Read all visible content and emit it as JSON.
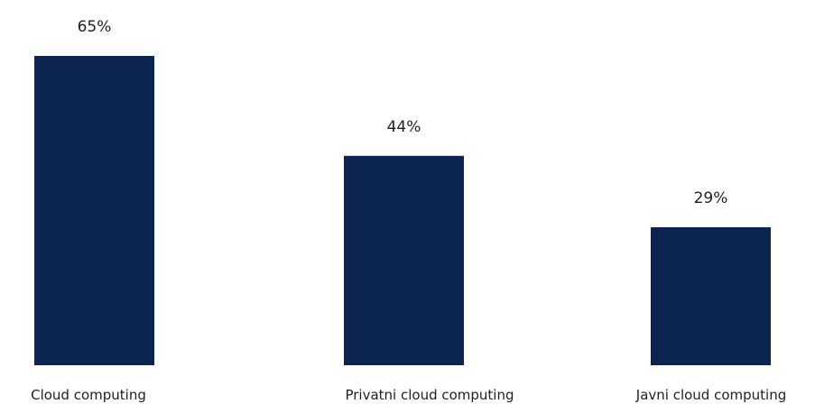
{
  "chart_data": {
    "type": "bar",
    "categories": [
      "Cloud computing",
      "Privatni cloud computing",
      "Javni cloud computing"
    ],
    "values": [
      65,
      44,
      29
    ],
    "data_labels": [
      "65%",
      "44%",
      "29%"
    ],
    "unit": "%",
    "title": "",
    "xlabel": "",
    "ylabel": "",
    "ylim": [
      0,
      65
    ],
    "grid": false,
    "legend": "none",
    "bar_color": "#0c2550"
  }
}
